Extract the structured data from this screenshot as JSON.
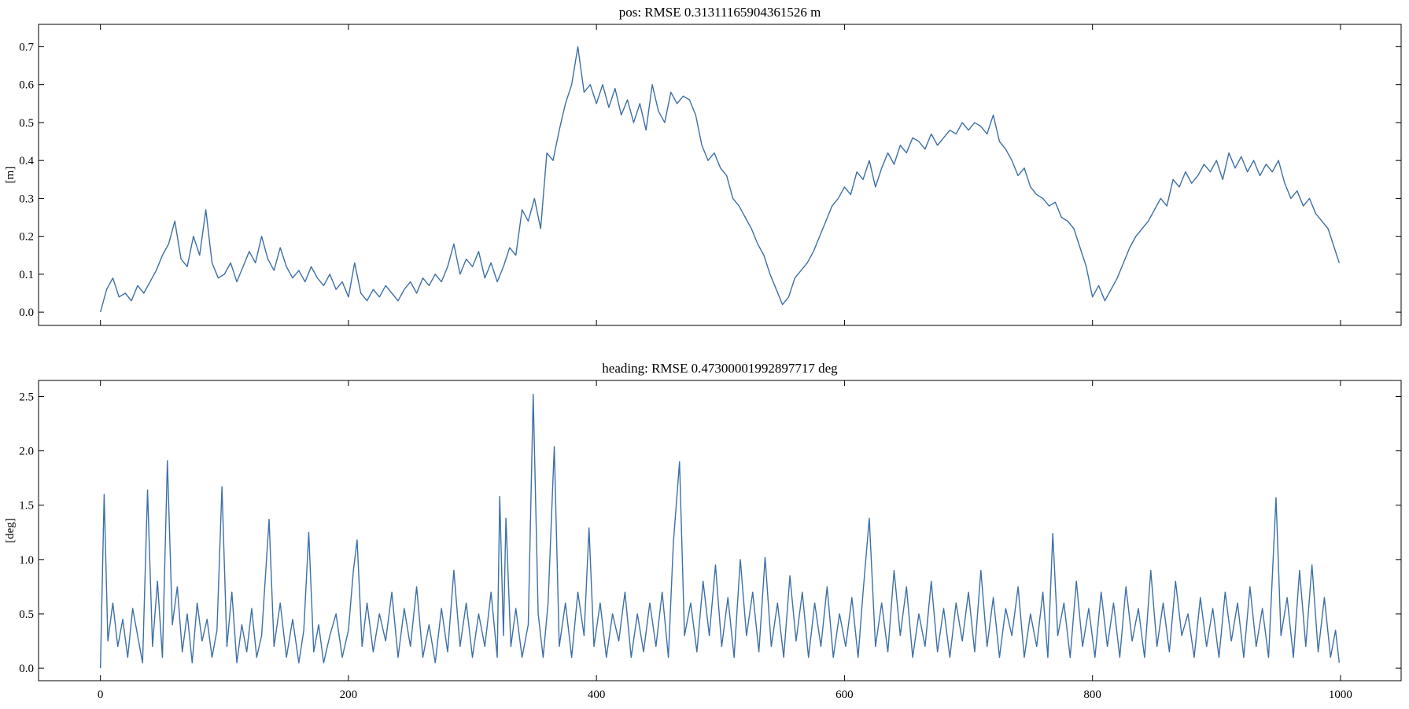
{
  "chart_data": [
    {
      "type": "line",
      "title": "pos: RMSE 0.31311165904361526 m",
      "ylabel": "[m]",
      "color": "#3d6fa6",
      "xlim": [
        -49.9,
        1048.9
      ],
      "ylim": [
        -0.035,
        0.759
      ],
      "xticks": [
        0,
        200,
        400,
        600,
        800,
        1000
      ],
      "yticks": [
        {
          "value": 0,
          "label": "0.0"
        },
        0.1,
        0.2,
        0.3,
        0.4,
        0.5,
        0.6,
        0.7
      ],
      "x": [
        0,
        5,
        10,
        15,
        20,
        25,
        30,
        35,
        40,
        45,
        50,
        55,
        60,
        65,
        70,
        75,
        80,
        85,
        90,
        95,
        100,
        105,
        110,
        115,
        120,
        125,
        130,
        135,
        140,
        145,
        150,
        155,
        160,
        165,
        170,
        175,
        180,
        185,
        190,
        195,
        200,
        205,
        210,
        215,
        220,
        225,
        230,
        235,
        240,
        245,
        250,
        255,
        260,
        265,
        270,
        275,
        280,
        285,
        290,
        295,
        300,
        305,
        310,
        315,
        320,
        325,
        330,
        335,
        340,
        345,
        350,
        355,
        360,
        365,
        370,
        375,
        380,
        385,
        390,
        395,
        400,
        405,
        410,
        415,
        420,
        425,
        430,
        435,
        440,
        445,
        450,
        455,
        460,
        465,
        470,
        475,
        480,
        485,
        490,
        495,
        500,
        505,
        510,
        515,
        520,
        525,
        530,
        535,
        540,
        545,
        550,
        555,
        560,
        565,
        570,
        575,
        580,
        585,
        590,
        595,
        600,
        605,
        610,
        615,
        620,
        625,
        630,
        635,
        640,
        645,
        650,
        655,
        660,
        665,
        670,
        675,
        680,
        685,
        690,
        695,
        700,
        705,
        710,
        715,
        720,
        725,
        730,
        735,
        740,
        745,
        750,
        755,
        760,
        765,
        770,
        775,
        780,
        785,
        790,
        795,
        800,
        805,
        810,
        815,
        820,
        825,
        830,
        835,
        840,
        845,
        850,
        855,
        860,
        865,
        870,
        875,
        880,
        885,
        890,
        895,
        900,
        905,
        910,
        915,
        920,
        925,
        930,
        935,
        940,
        945,
        950,
        955,
        960,
        965,
        970,
        975,
        980,
        985,
        990,
        995,
        999
      ],
      "values": [
        0.0,
        0.06,
        0.09,
        0.04,
        0.05,
        0.03,
        0.07,
        0.05,
        0.08,
        0.11,
        0.15,
        0.18,
        0.24,
        0.14,
        0.12,
        0.2,
        0.15,
        0.27,
        0.13,
        0.09,
        0.1,
        0.13,
        0.08,
        0.12,
        0.16,
        0.13,
        0.2,
        0.14,
        0.11,
        0.17,
        0.12,
        0.09,
        0.11,
        0.08,
        0.12,
        0.09,
        0.07,
        0.1,
        0.06,
        0.08,
        0.04,
        0.13,
        0.05,
        0.03,
        0.06,
        0.04,
        0.07,
        0.05,
        0.03,
        0.06,
        0.08,
        0.05,
        0.09,
        0.07,
        0.1,
        0.08,
        0.12,
        0.18,
        0.1,
        0.14,
        0.12,
        0.16,
        0.09,
        0.13,
        0.08,
        0.12,
        0.17,
        0.15,
        0.27,
        0.24,
        0.3,
        0.22,
        0.42,
        0.4,
        0.48,
        0.55,
        0.6,
        0.7,
        0.58,
        0.6,
        0.55,
        0.6,
        0.54,
        0.59,
        0.52,
        0.56,
        0.5,
        0.55,
        0.48,
        0.6,
        0.53,
        0.5,
        0.58,
        0.55,
        0.57,
        0.56,
        0.52,
        0.44,
        0.4,
        0.42,
        0.38,
        0.36,
        0.3,
        0.28,
        0.25,
        0.22,
        0.18,
        0.15,
        0.1,
        0.06,
        0.02,
        0.04,
        0.09,
        0.11,
        0.13,
        0.16,
        0.2,
        0.24,
        0.28,
        0.3,
        0.33,
        0.31,
        0.37,
        0.35,
        0.4,
        0.33,
        0.38,
        0.42,
        0.39,
        0.44,
        0.42,
        0.46,
        0.45,
        0.43,
        0.47,
        0.44,
        0.46,
        0.48,
        0.47,
        0.5,
        0.48,
        0.5,
        0.49,
        0.47,
        0.52,
        0.45,
        0.43,
        0.4,
        0.36,
        0.38,
        0.33,
        0.31,
        0.3,
        0.28,
        0.29,
        0.25,
        0.24,
        0.22,
        0.17,
        0.12,
        0.04,
        0.07,
        0.03,
        0.06,
        0.09,
        0.13,
        0.17,
        0.2,
        0.22,
        0.24,
        0.27,
        0.3,
        0.28,
        0.35,
        0.33,
        0.37,
        0.34,
        0.36,
        0.39,
        0.37,
        0.4,
        0.35,
        0.42,
        0.38,
        0.41,
        0.37,
        0.4,
        0.36,
        0.39,
        0.37,
        0.4,
        0.34,
        0.3,
        0.32,
        0.28,
        0.3,
        0.26,
        0.24,
        0.22,
        0.17,
        0.13
      ]
    },
    {
      "type": "line",
      "title": "heading: RMSE 0.47300001992897717 deg",
      "ylabel": "[deg]",
      "color": "#3d6fa6",
      "xlim": [
        -49.9,
        1048.9
      ],
      "ylim": [
        -0.115,
        2.648
      ],
      "xticks": [
        0,
        200,
        400,
        600,
        800,
        1000
      ],
      "yticks": [
        {
          "value": 0,
          "label": "0.0"
        },
        0.5,
        {
          "value": 1,
          "label": "1.0"
        },
        1.5,
        {
          "value": 2,
          "label": "2.0"
        },
        2.5
      ],
      "x": [
        0,
        3,
        6,
        10,
        14,
        18,
        22,
        26,
        30,
        34,
        38,
        42,
        46,
        50,
        54,
        58,
        62,
        66,
        70,
        74,
        78,
        82,
        86,
        90,
        94,
        98,
        102,
        106,
        110,
        114,
        118,
        122,
        126,
        130,
        136,
        140,
        145,
        150,
        155,
        160,
        164,
        168,
        172,
        176,
        180,
        185,
        190,
        195,
        200,
        204,
        207,
        211,
        215,
        220,
        225,
        230,
        235,
        240,
        245,
        250,
        255,
        260,
        265,
        270,
        275,
        280,
        285,
        290,
        295,
        300,
        305,
        310,
        315,
        320,
        322,
        325,
        327,
        331,
        335,
        340,
        345,
        349,
        353,
        357,
        361,
        366,
        370,
        375,
        380,
        385,
        390,
        394,
        398,
        403,
        408,
        413,
        418,
        423,
        428,
        433,
        438,
        443,
        448,
        453,
        458,
        462,
        467,
        471,
        476,
        481,
        486,
        491,
        496,
        501,
        506,
        511,
        516,
        521,
        526,
        531,
        536,
        541,
        546,
        551,
        556,
        561,
        566,
        571,
        576,
        581,
        586,
        591,
        596,
        601,
        606,
        611,
        615,
        620,
        625,
        630,
        635,
        640,
        645,
        650,
        655,
        660,
        665,
        670,
        675,
        680,
        685,
        690,
        695,
        700,
        705,
        710,
        715,
        720,
        725,
        730,
        735,
        740,
        745,
        750,
        755,
        760,
        764,
        768,
        772,
        777,
        782,
        787,
        792,
        797,
        802,
        807,
        812,
        817,
        822,
        827,
        832,
        837,
        842,
        847,
        852,
        857,
        862,
        867,
        872,
        877,
        882,
        887,
        892,
        897,
        902,
        907,
        912,
        917,
        922,
        927,
        932,
        937,
        942,
        948,
        952,
        957,
        962,
        967,
        972,
        977,
        982,
        987,
        992,
        996,
        999
      ],
      "values": [
        0.0,
        1.6,
        0.25,
        0.6,
        0.2,
        0.45,
        0.1,
        0.55,
        0.3,
        0.05,
        1.64,
        0.2,
        0.8,
        0.1,
        1.91,
        0.4,
        0.75,
        0.15,
        0.5,
        0.05,
        0.6,
        0.25,
        0.45,
        0.1,
        0.35,
        1.67,
        0.2,
        0.7,
        0.05,
        0.4,
        0.15,
        0.55,
        0.1,
        0.3,
        1.37,
        0.2,
        0.6,
        0.1,
        0.45,
        0.05,
        0.35,
        1.25,
        0.15,
        0.4,
        0.05,
        0.3,
        0.5,
        0.1,
        0.35,
        0.9,
        1.18,
        0.2,
        0.6,
        0.15,
        0.5,
        0.25,
        0.7,
        0.1,
        0.55,
        0.2,
        0.75,
        0.1,
        0.4,
        0.05,
        0.55,
        0.15,
        0.9,
        0.2,
        0.6,
        0.1,
        0.5,
        0.2,
        0.7,
        0.1,
        1.58,
        0.3,
        1.38,
        0.2,
        0.55,
        0.1,
        0.4,
        2.52,
        0.5,
        0.1,
        0.6,
        2.04,
        0.2,
        0.6,
        0.1,
        0.7,
        0.3,
        1.29,
        0.2,
        0.6,
        0.1,
        0.5,
        0.25,
        0.7,
        0.1,
        0.5,
        0.15,
        0.6,
        0.2,
        0.7,
        0.1,
        1.15,
        1.9,
        0.3,
        0.6,
        0.15,
        0.8,
        0.3,
        0.95,
        0.2,
        0.65,
        0.1,
        1.0,
        0.3,
        0.7,
        0.15,
        1.02,
        0.2,
        0.6,
        0.1,
        0.85,
        0.25,
        0.7,
        0.1,
        0.6,
        0.2,
        0.75,
        0.1,
        0.5,
        0.2,
        0.65,
        0.1,
        0.7,
        1.38,
        0.2,
        0.6,
        0.15,
        0.9,
        0.3,
        0.75,
        0.1,
        0.5,
        0.2,
        0.8,
        0.15,
        0.55,
        0.1,
        0.6,
        0.25,
        0.7,
        0.15,
        0.9,
        0.2,
        0.65,
        0.1,
        0.55,
        0.3,
        0.75,
        0.1,
        0.5,
        0.2,
        0.7,
        0.1,
        1.24,
        0.3,
        0.6,
        0.1,
        0.8,
        0.2,
        0.55,
        0.1,
        0.7,
        0.2,
        0.6,
        0.1,
        0.75,
        0.25,
        0.55,
        0.1,
        0.9,
        0.2,
        0.6,
        0.15,
        0.8,
        0.3,
        0.5,
        0.1,
        0.65,
        0.2,
        0.55,
        0.1,
        0.7,
        0.25,
        0.6,
        0.1,
        0.75,
        0.2,
        0.55,
        0.1,
        1.57,
        0.3,
        0.65,
        0.1,
        0.9,
        0.2,
        0.95,
        0.15,
        0.65,
        0.1,
        0.35,
        0.05
      ]
    }
  ]
}
